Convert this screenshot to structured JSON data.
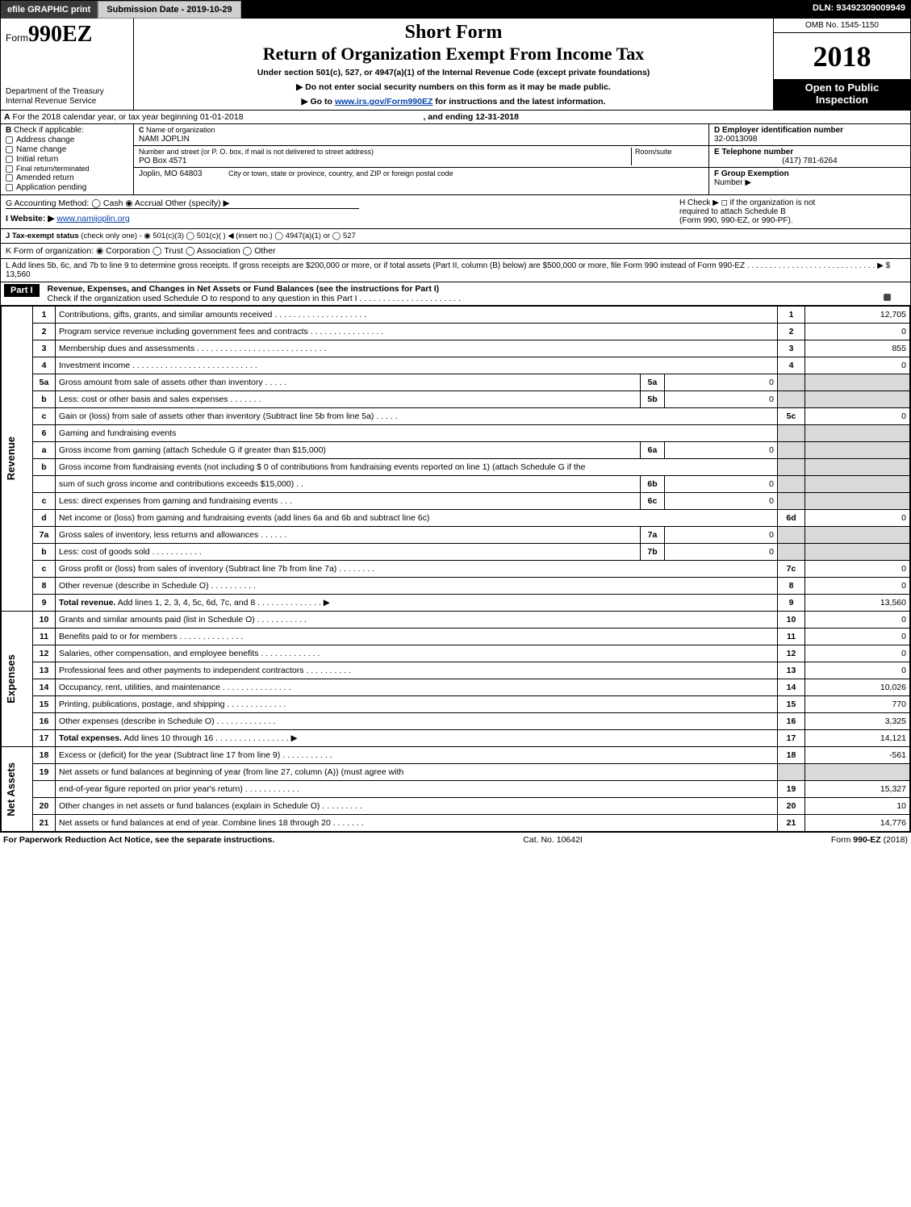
{
  "topbar": {
    "efile": "efile GRAPHIC print",
    "submission": "Submission Date - 2019-10-29",
    "dln": "DLN: 93492309009949"
  },
  "header": {
    "form_prefix": "Form",
    "form_no": "990EZ",
    "dept1": "Department of the Treasury",
    "dept2": "Internal Revenue Service",
    "short_form": "Short Form",
    "title": "Return of Organization Exempt From Income Tax",
    "subtitle": "Under section 501(c), 527, or 4947(a)(1) of the Internal Revenue Code (except private foundations)",
    "instr1_pre": "▶ Do not enter social security numbers on this form as it may be made public.",
    "instr2_pre": "▶ Go to ",
    "instr2_link": "www.irs.gov/Form990EZ",
    "instr2_post": " for instructions and the latest information.",
    "omb": "OMB No. 1545-1150",
    "year": "2018",
    "inspect1": "Open to Public",
    "inspect2": "Inspection"
  },
  "rowA": {
    "prefix": "A",
    "text": " For the 2018 calendar year, or tax year beginning 01-01-2018",
    "mid": ", and ending 12-31-2018"
  },
  "sectionB": {
    "b_label": "B",
    "check_if": " Check if applicable:",
    "opts": [
      "Address change",
      "Name change",
      "Initial return",
      "Final return/terminated",
      "Amended return",
      "Application pending"
    ],
    "c_label": "C",
    "c_name_lbl": " Name of organization",
    "c_name": "NAMI JOPLIN",
    "addr_lbl": "Number and street (or P. O. box, if mail is not delivered to street address)",
    "room_lbl": "Room/suite",
    "addr": "PO Box 4571",
    "city_lbl": "City or town, state or province, country, and ZIP or foreign postal code",
    "city": "Joplin, MO  64803",
    "d_lbl": "D Employer identification number",
    "d_val": "32-0013098",
    "e_lbl": "E Telephone number",
    "e_val": "(417) 781-6264",
    "f_lbl": "F Group Exemption",
    "f_lbl2": "Number   ▶"
  },
  "rowG": {
    "g": "G Accounting Method:   ◯ Cash   ◉ Accrual   Other (specify) ▶",
    "h1": "H   Check ▶  ◻  if the organization is not",
    "h2": "required to attach Schedule B",
    "h3": "(Form 990, 990-EZ, or 990-PF)."
  },
  "rowI": {
    "label": "I Website: ▶",
    "link": "www.namijoplin.org"
  },
  "rowJ": "J Tax-exempt status (check only one) -  ◉ 501(c)(3)  ◯ 501(c)(  ) ◀ (insert no.)  ◯ 4947(a)(1) or  ◯ 527",
  "rowK": "K Form of organization:  ◉ Corporation   ◯ Trust   ◯ Association   ◯ Other",
  "rowL": {
    "text": "L Add lines 5b, 6c, and 7b to line 9 to determine gross receipts. If gross receipts are $200,000 or more, or if total assets (Part II, column (B) below) are $500,000 or more, file Form 990 instead of Form 990-EZ  .  .  .  .  .  .  .  .  .  .  .  .  .  .  .  .  .  .  .  .  .  .  .  .  .  .  .  .  .  ▶ $ 13,560"
  },
  "part1": {
    "label": "Part I",
    "title": "Revenue, Expenses, and Changes in Net Assets or Fund Balances (see the instructions for Part I)",
    "check": "Check if the organization used Schedule O to respond to any question in this Part I .  .  .  .  .  .  .  .  .  .  .  .  .  .  .  .  .  .  .  .  .  ."
  },
  "sections": {
    "revenue": "Revenue",
    "expenses": "Expenses",
    "netassets": "Net Assets"
  },
  "lines": [
    {
      "n": "1",
      "desc": "Contributions, gifts, grants, and similar amounts received  .  .  .  .  .  .  .  .  .  .  .  .  .  .  .  .  .  .  .  .",
      "ref": "1",
      "val": "12,705"
    },
    {
      "n": "2",
      "desc": "Program service revenue including government fees and contracts  .  .  .  .  .  .  .  .  .  .  .  .  .  .  .  .",
      "ref": "2",
      "val": "0"
    },
    {
      "n": "3",
      "desc": "Membership dues and assessments  .  .  .  .  .  .  .  .  .  .  .  .  .  .  .  .  .  .  .  .  .  .  .  .  .  .  .  .",
      "ref": "3",
      "val": "855"
    },
    {
      "n": "4",
      "desc": "Investment income  .  .  .  .  .  .  .  .  .  .  .  .  .  .  .  .  .  .  .  .  .  .  .  .  .  .  .",
      "ref": "4",
      "val": "0"
    },
    {
      "n": "5a",
      "desc": "Gross amount from sale of assets other than inventory  .  .  .  .  .",
      "subref": "5a",
      "subval": "0",
      "shade": true
    },
    {
      "n": "b",
      "desc": "Less: cost or other basis and sales expenses  .  .  .  .  .  .  .",
      "subref": "5b",
      "subval": "0",
      "shade": true
    },
    {
      "n": "c",
      "desc": "Gain or (loss) from sale of assets other than inventory (Subtract line 5b from line 5a)                    .    .    .    .    .",
      "ref": "5c",
      "val": "0"
    },
    {
      "n": "6",
      "desc": "Gaming and fundraising events",
      "shade": true
    },
    {
      "n": "a",
      "desc": "Gross income from gaming (attach Schedule G if greater than $15,000)",
      "subref": "6a",
      "subval": "0",
      "shade": true
    },
    {
      "n": "b",
      "desc": "Gross income from fundraising events (not including $  0                    of contributions from fundraising events reported on line 1) (attach Schedule G if the",
      "shade": true,
      "tall": true
    },
    {
      "n": "",
      "desc": "sum of such gross income and contributions exceeds $15,000)           .    .",
      "subref": "6b",
      "subval": "0",
      "shade": true
    },
    {
      "n": "c",
      "desc": "Less: direct expenses from gaming and fundraising events              .    .    .",
      "subref": "6c",
      "subval": "0",
      "shade": true
    },
    {
      "n": "d",
      "desc": "Net income or (loss) from gaming and fundraising events (add lines 6a and 6b and subtract line 6c)",
      "ref": "6d",
      "val": "0"
    },
    {
      "n": "7a",
      "desc": "Gross sales of inventory, less returns and allowances            .    .    .    .    .    .",
      "subref": "7a",
      "subval": "0",
      "shade": true
    },
    {
      "n": "b",
      "desc": "Less: cost of goods sold                       .    .    .    .    .    .    .    .    .    .    .",
      "subref": "7b",
      "subval": "0",
      "shade": true
    },
    {
      "n": "c",
      "desc": "Gross profit or (loss) from sales of inventory (Subtract line 7b from line 7a)         .    .    .    .    .    .    .    .",
      "ref": "7c",
      "val": "0"
    },
    {
      "n": "8",
      "desc": "Other revenue (describe in Schedule O)                           .    .    .    .    .    .    .    .    .    .",
      "ref": "8",
      "val": "0"
    },
    {
      "n": "9",
      "desc": "Total revenue. Add lines 1, 2, 3, 4, 5c, 6d, 7c, and 8         .    .    .    .    .    .    .    .    .    .    .    .    .    .   ▶",
      "ref": "9",
      "val": "13,560",
      "bold": true
    },
    {
      "n": "10",
      "desc": "Grants and similar amounts paid (list in Schedule O)              .    .    .    .    .    .    .    .    .    .    .",
      "ref": "10",
      "val": "0",
      "sec": "exp"
    },
    {
      "n": "11",
      "desc": "Benefits paid to or for members                   .    .    .    .    .    .    .    .    .    .    .    .    .    .",
      "ref": "11",
      "val": "0",
      "sec": "exp"
    },
    {
      "n": "12",
      "desc": "Salaries, other compensation, and employee benefits       .    .    .    .    .    .    .    .    .    .    .    .    .",
      "ref": "12",
      "val": "0",
      "sec": "exp"
    },
    {
      "n": "13",
      "desc": "Professional fees and other payments to independent contractors        .    .    .    .    .    .    .    .    .    .",
      "ref": "13",
      "val": "0",
      "sec": "exp"
    },
    {
      "n": "14",
      "desc": "Occupancy, rent, utilities, and maintenance         .    .    .    .    .    .    .    .    .    .    .    .    .    .    .",
      "ref": "14",
      "val": "10,026",
      "sec": "exp"
    },
    {
      "n": "15",
      "desc": "Printing, publications, postage, and shipping              .    .    .    .    .    .    .    .    .    .    .    .    .",
      "ref": "15",
      "val": "770",
      "sec": "exp"
    },
    {
      "n": "16",
      "desc": "Other expenses (describe in Schedule O)                  .    .    .    .    .    .    .    .    .    .    .    .    .",
      "ref": "16",
      "val": "3,325",
      "sec": "exp"
    },
    {
      "n": "17",
      "desc": "Total expenses. Add lines 10 through 16            .    .    .    .    .    .    .    .    .    .    .    .    .    .    .    .   ▶",
      "ref": "17",
      "val": "14,121",
      "sec": "exp",
      "bold": true
    },
    {
      "n": "18",
      "desc": "Excess or (deficit) for the year (Subtract line 17 from line 9)          .    .    .    .    .    .    .    .    .    .    .",
      "ref": "18",
      "val": "-561",
      "sec": "net"
    },
    {
      "n": "19",
      "desc": "Net assets or fund balances at beginning of year (from line 27, column (A)) (must agree with",
      "sec": "net",
      "shade": true
    },
    {
      "n": "",
      "desc": "end-of-year figure reported on prior year's return)            .    .    .    .    .    .    .    .    .    .    .    .",
      "ref": "19",
      "val": "15,327",
      "sec": "net"
    },
    {
      "n": "20",
      "desc": "Other changes in net assets or fund balances (explain in Schedule O)        .    .    .    .    .    .    .    .    .",
      "ref": "20",
      "val": "10",
      "sec": "net"
    },
    {
      "n": "21",
      "desc": "Net assets or fund balances at end of year. Combine lines 18 through 20            .    .    .    .    .    .    .",
      "ref": "21",
      "val": "14,776",
      "sec": "net"
    }
  ],
  "footer": {
    "left": "For Paperwork Reduction Act Notice, see the separate instructions.",
    "mid": "Cat. No. 10642I",
    "right": "Form 990-EZ (2018)"
  },
  "colors": {
    "shade": "#d9d9d9",
    "link": "#0645ad"
  }
}
